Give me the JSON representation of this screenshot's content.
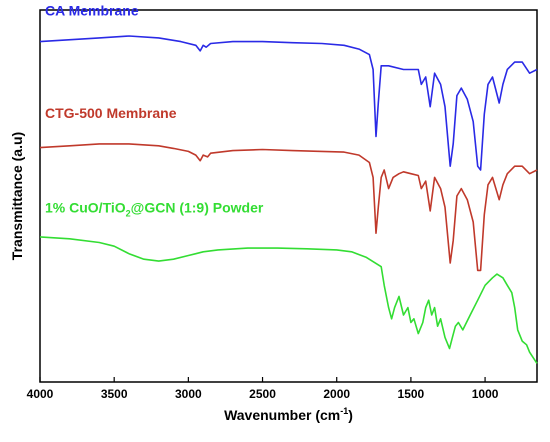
{
  "chart_data": {
    "type": "line",
    "title": "",
    "xlabel_main": "Wavenumber (cm",
    "xlabel_sup": "-1",
    "xlabel_end": ")",
    "ylabel": "Transmittance (a.u)",
    "xlim": [
      4000,
      650
    ],
    "x_reversed": true,
    "xticks": [
      "4000",
      "3500",
      "3000",
      "2500",
      "2000",
      "1500",
      "1000"
    ],
    "y_ticks_shown": false,
    "legend": "inline labels",
    "series": [
      {
        "name": "CA Membrane",
        "label_main": "CA Membrane",
        "color": "#2a2ae6",
        "values": [
          [
            4000,
            0.915
          ],
          [
            3600,
            0.925
          ],
          [
            3400,
            0.93
          ],
          [
            3200,
            0.925
          ],
          [
            3050,
            0.915
          ],
          [
            2950,
            0.905
          ],
          [
            2920,
            0.89
          ],
          [
            2900,
            0.905
          ],
          [
            2880,
            0.9
          ],
          [
            2850,
            0.91
          ],
          [
            2700,
            0.915
          ],
          [
            2500,
            0.915
          ],
          [
            2300,
            0.912
          ],
          [
            2100,
            0.91
          ],
          [
            1950,
            0.905
          ],
          [
            1850,
            0.895
          ],
          [
            1780,
            0.88
          ],
          [
            1755,
            0.84
          ],
          [
            1735,
            0.66
          ],
          [
            1720,
            0.75
          ],
          [
            1700,
            0.85
          ],
          [
            1650,
            0.85
          ],
          [
            1550,
            0.84
          ],
          [
            1450,
            0.84
          ],
          [
            1430,
            0.8
          ],
          [
            1400,
            0.82
          ],
          [
            1370,
            0.74
          ],
          [
            1340,
            0.83
          ],
          [
            1300,
            0.8
          ],
          [
            1270,
            0.74
          ],
          [
            1235,
            0.58
          ],
          [
            1215,
            0.64
          ],
          [
            1190,
            0.77
          ],
          [
            1160,
            0.79
          ],
          [
            1120,
            0.76
          ],
          [
            1080,
            0.7
          ],
          [
            1050,
            0.58
          ],
          [
            1030,
            0.57
          ],
          [
            1005,
            0.72
          ],
          [
            980,
            0.8
          ],
          [
            950,
            0.82
          ],
          [
            905,
            0.75
          ],
          [
            880,
            0.8
          ],
          [
            850,
            0.84
          ],
          [
            800,
            0.86
          ],
          [
            750,
            0.86
          ],
          [
            700,
            0.83
          ],
          [
            650,
            0.84
          ]
        ]
      },
      {
        "name": "CTG-500 Membrane",
        "label_main": "CTG-500 Membrane",
        "color": "#c0392b",
        "values": [
          [
            4000,
            0.63
          ],
          [
            3800,
            0.635
          ],
          [
            3600,
            0.64
          ],
          [
            3400,
            0.64
          ],
          [
            3200,
            0.635
          ],
          [
            3100,
            0.628
          ],
          [
            3000,
            0.62
          ],
          [
            2950,
            0.61
          ],
          [
            2920,
            0.595
          ],
          [
            2900,
            0.61
          ],
          [
            2870,
            0.605
          ],
          [
            2850,
            0.615
          ],
          [
            2700,
            0.622
          ],
          [
            2500,
            0.625
          ],
          [
            2300,
            0.622
          ],
          [
            2100,
            0.62
          ],
          [
            1950,
            0.618
          ],
          [
            1850,
            0.61
          ],
          [
            1780,
            0.59
          ],
          [
            1755,
            0.55
          ],
          [
            1735,
            0.4
          ],
          [
            1720,
            0.47
          ],
          [
            1700,
            0.55
          ],
          [
            1680,
            0.57
          ],
          [
            1650,
            0.52
          ],
          [
            1620,
            0.55
          ],
          [
            1580,
            0.56
          ],
          [
            1550,
            0.565
          ],
          [
            1500,
            0.56
          ],
          [
            1450,
            0.555
          ],
          [
            1430,
            0.52
          ],
          [
            1400,
            0.54
          ],
          [
            1370,
            0.46
          ],
          [
            1340,
            0.55
          ],
          [
            1300,
            0.52
          ],
          [
            1270,
            0.47
          ],
          [
            1235,
            0.32
          ],
          [
            1215,
            0.38
          ],
          [
            1190,
            0.5
          ],
          [
            1160,
            0.52
          ],
          [
            1120,
            0.49
          ],
          [
            1080,
            0.43
          ],
          [
            1050,
            0.3
          ],
          [
            1030,
            0.3
          ],
          [
            1005,
            0.45
          ],
          [
            980,
            0.53
          ],
          [
            950,
            0.55
          ],
          [
            905,
            0.49
          ],
          [
            880,
            0.53
          ],
          [
            850,
            0.56
          ],
          [
            800,
            0.58
          ],
          [
            750,
            0.58
          ],
          [
            700,
            0.56
          ],
          [
            650,
            0.57
          ]
        ]
      },
      {
        "name": "1% CuO/TiO2@GCN (1:9) Powder",
        "label_main": "1% CuO/TiO",
        "label_sub": "2",
        "label_end": "@GCN (1:9) Powder",
        "color": "#33dd33",
        "values": [
          [
            4000,
            0.39
          ],
          [
            3800,
            0.385
          ],
          [
            3600,
            0.375
          ],
          [
            3500,
            0.365
          ],
          [
            3400,
            0.345
          ],
          [
            3300,
            0.33
          ],
          [
            3200,
            0.325
          ],
          [
            3100,
            0.33
          ],
          [
            3000,
            0.34
          ],
          [
            2950,
            0.345
          ],
          [
            2900,
            0.35
          ],
          [
            2800,
            0.355
          ],
          [
            2600,
            0.36
          ],
          [
            2400,
            0.36
          ],
          [
            2200,
            0.358
          ],
          [
            2000,
            0.355
          ],
          [
            1900,
            0.35
          ],
          [
            1800,
            0.335
          ],
          [
            1700,
            0.31
          ],
          [
            1680,
            0.26
          ],
          [
            1650,
            0.2
          ],
          [
            1630,
            0.17
          ],
          [
            1610,
            0.2
          ],
          [
            1580,
            0.23
          ],
          [
            1550,
            0.18
          ],
          [
            1520,
            0.2
          ],
          [
            1500,
            0.16
          ],
          [
            1480,
            0.17
          ],
          [
            1450,
            0.13
          ],
          [
            1420,
            0.16
          ],
          [
            1400,
            0.2
          ],
          [
            1380,
            0.22
          ],
          [
            1360,
            0.18
          ],
          [
            1340,
            0.2
          ],
          [
            1320,
            0.15
          ],
          [
            1300,
            0.17
          ],
          [
            1270,
            0.12
          ],
          [
            1240,
            0.09
          ],
          [
            1220,
            0.12
          ],
          [
            1200,
            0.15
          ],
          [
            1180,
            0.16
          ],
          [
            1150,
            0.14
          ],
          [
            1100,
            0.18
          ],
          [
            1050,
            0.22
          ],
          [
            1000,
            0.26
          ],
          [
            950,
            0.28
          ],
          [
            920,
            0.29
          ],
          [
            880,
            0.28
          ],
          [
            850,
            0.26
          ],
          [
            820,
            0.24
          ],
          [
            800,
            0.2
          ],
          [
            780,
            0.14
          ],
          [
            750,
            0.11
          ],
          [
            720,
            0.1
          ],
          [
            700,
            0.08
          ],
          [
            650,
            0.05
          ]
        ]
      }
    ]
  }
}
